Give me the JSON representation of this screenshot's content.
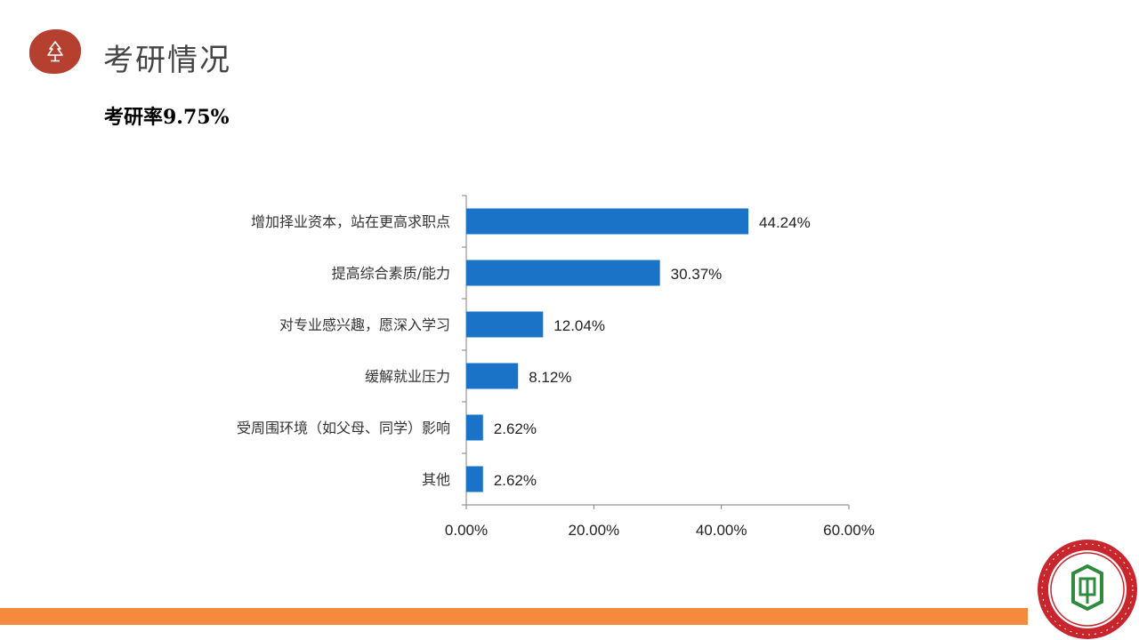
{
  "header": {
    "title": "考研情况",
    "icon": "tree-icon",
    "badge_color": "#b5402f"
  },
  "subtitle": "考研率9.75%",
  "chart_data": {
    "type": "bar",
    "orientation": "horizontal",
    "categories": [
      "增加择业资本，站在更高求职点",
      "提高综合素质/能力",
      "对专业感兴趣，愿深入学习",
      "缓解就业压力",
      "受周围环境（如父母、同学）影响",
      "其他"
    ],
    "values": [
      44.24,
      30.37,
      12.04,
      8.12,
      2.62,
      2.62
    ],
    "data_labels": [
      "44.24%",
      "30.37%",
      "12.04%",
      "8.12%",
      "2.62%",
      "2.62%"
    ],
    "xlim": [
      0,
      60
    ],
    "xticks": [
      0,
      20,
      40,
      60
    ],
    "xtick_labels": [
      "0.00%",
      "20.00%",
      "40.00%",
      "60.00%"
    ],
    "bar_color": "#1a73c6",
    "grid": false,
    "title": "",
    "xlabel": "",
    "ylabel": ""
  },
  "footer": {
    "bar_color": "#f5893c",
    "logo_text": "HUNAN CITY UNIVERSITY",
    "logo_color": "#c8252c",
    "logo_emblem_color": "#2e8b3e"
  }
}
